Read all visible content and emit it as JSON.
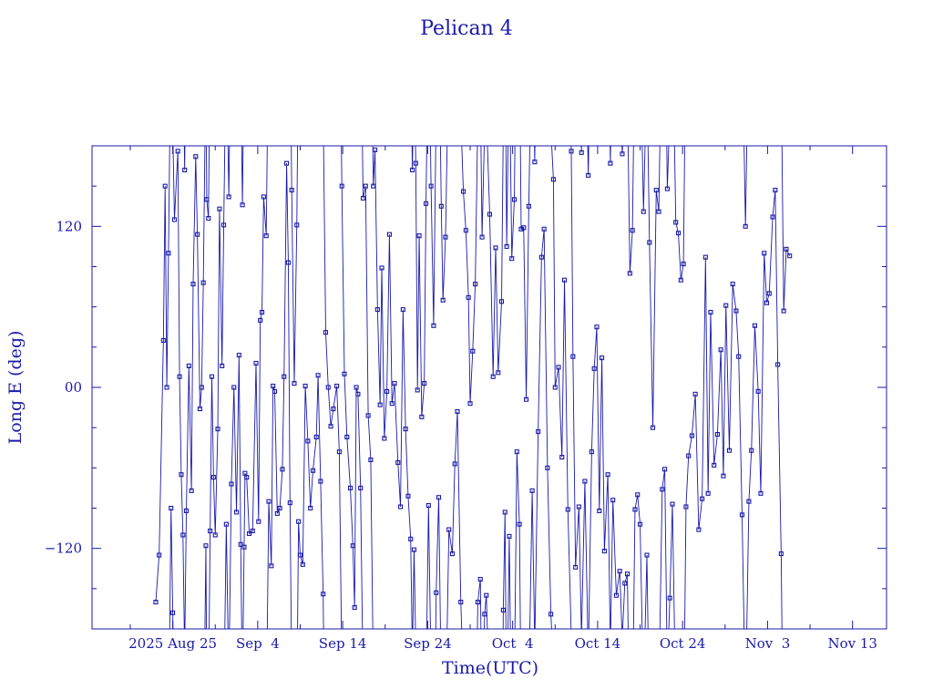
{
  "chart_data": {
    "type": "scatter",
    "title": "Pelican 4",
    "xlabel": "Time(UTC)",
    "ylabel": "Long E (deg)",
    "x_ticks": [
      "2025 Aug 25",
      "Sep  4",
      "Sep 14",
      "Sep 24",
      "Oct  4",
      "Oct 14",
      "Oct 24",
      "Nov  3",
      "Nov 13"
    ],
    "x_tick_days": [
      0,
      10,
      20,
      30,
      40,
      50,
      60,
      70,
      80
    ],
    "xlim_days": [
      -9.5,
      84
    ],
    "y_ticks": [
      "−120",
      "00",
      "120"
    ],
    "y_tick_values": [
      -120,
      0,
      120
    ],
    "ylim": [
      -180,
      180
    ],
    "grid": false,
    "series": [
      {
        "points": [
          [
            -2.0,
            -160
          ],
          [
            -1.6,
            -125
          ],
          [
            -1.1,
            35
          ],
          [
            -0.9,
            150
          ],
          [
            -0.7,
            0
          ],
          [
            -0.5,
            100
          ],
          [
            -0.2,
            -90
          ],
          [
            0.0,
            -168
          ],
          [
            0.2,
            125
          ],
          [
            0.6,
            176
          ],
          [
            0.8,
            8
          ],
          [
            1.0,
            -65
          ],
          [
            1.2,
            -110
          ],
          [
            1.4,
            162
          ],
          [
            1.6,
            -92
          ],
          [
            1.9,
            16
          ],
          [
            2.2,
            -77
          ],
          [
            2.4,
            77
          ],
          [
            2.7,
            172
          ],
          [
            2.9,
            114
          ],
          [
            3.2,
            -16
          ],
          [
            3.4,
            0
          ],
          [
            3.6,
            78
          ],
          [
            3.9,
            -118
          ],
          [
            4.0,
            140
          ],
          [
            4.2,
            126
          ],
          [
            4.4,
            -107
          ],
          [
            4.6,
            8
          ],
          [
            4.8,
            -67
          ],
          [
            5.0,
            -110
          ],
          [
            5.3,
            -31
          ],
          [
            5.5,
            133
          ],
          [
            5.8,
            16
          ],
          [
            6.0,
            121
          ],
          [
            6.3,
            -102
          ],
          [
            6.6,
            142
          ],
          [
            6.9,
            -72
          ],
          [
            7.2,
            0
          ],
          [
            7.5,
            -93
          ],
          [
            7.8,
            24
          ],
          [
            8.0,
            -117
          ],
          [
            8.2,
            136
          ],
          [
            8.4,
            -119
          ],
          [
            8.5,
            -64
          ],
          [
            8.7,
            -67
          ],
          [
            9.0,
            -109
          ],
          [
            9.4,
            -107
          ],
          [
            9.8,
            18
          ],
          [
            10.1,
            -100
          ],
          [
            10.3,
            50
          ],
          [
            10.5,
            56
          ],
          [
            10.7,
            142
          ],
          [
            11.0,
            113
          ],
          [
            11.3,
            -85
          ],
          [
            11.6,
            -133
          ],
          [
            11.8,
            1
          ],
          [
            12.0,
            -3
          ],
          [
            12.3,
            -94
          ],
          [
            12.6,
            -90
          ],
          [
            12.9,
            -61
          ],
          [
            13.1,
            8
          ],
          [
            13.4,
            167
          ],
          [
            13.6,
            93
          ],
          [
            13.8,
            -86
          ],
          [
            14.0,
            147
          ],
          [
            14.3,
            3
          ],
          [
            14.6,
            121
          ],
          [
            14.8,
            -100
          ],
          [
            15.0,
            -125
          ],
          [
            15.3,
            -132
          ],
          [
            15.6,
            1
          ],
          [
            15.9,
            -40
          ],
          [
            16.2,
            -90
          ],
          [
            16.5,
            -62
          ],
          [
            16.9,
            -37
          ],
          [
            17.1,
            9
          ],
          [
            17.4,
            -70
          ],
          [
            17.7,
            -154
          ],
          [
            18.0,
            41
          ],
          [
            18.3,
            0
          ],
          [
            18.6,
            -29
          ],
          [
            18.9,
            -16
          ],
          [
            19.3,
            1
          ],
          [
            19.6,
            -48
          ],
          [
            19.9,
            150
          ],
          [
            20.2,
            10
          ],
          [
            20.5,
            -37
          ],
          [
            20.9,
            -75
          ],
          [
            21.2,
            -118
          ],
          [
            21.4,
            -164
          ],
          [
            21.6,
            0
          ],
          [
            21.8,
            -5
          ],
          [
            22.1,
            -75
          ],
          [
            22.4,
            141
          ],
          [
            22.7,
            150
          ],
          [
            23.0,
            -21
          ],
          [
            23.3,
            -54
          ],
          [
            23.6,
            150
          ],
          [
            23.8,
            177
          ],
          [
            24.1,
            58
          ],
          [
            24.4,
            -13
          ],
          [
            24.6,
            89
          ],
          [
            24.9,
            -38
          ],
          [
            25.2,
            -3
          ],
          [
            25.5,
            114
          ],
          [
            25.8,
            -12
          ],
          [
            26.1,
            3
          ],
          [
            26.5,
            -56
          ],
          [
            26.8,
            -89
          ],
          [
            27.1,
            58
          ],
          [
            27.4,
            -31
          ],
          [
            27.7,
            -81
          ],
          [
            28.0,
            -113
          ],
          [
            28.2,
            162
          ],
          [
            28.4,
            -121
          ],
          [
            28.6,
            167
          ],
          [
            28.8,
            -2
          ],
          [
            29.0,
            113
          ],
          [
            29.3,
            -22
          ],
          [
            29.6,
            3
          ],
          [
            29.8,
            137
          ],
          [
            30.1,
            -88
          ],
          [
            30.4,
            150
          ],
          [
            30.7,
            46
          ],
          [
            31.0,
            -153
          ],
          [
            31.3,
            -82
          ],
          [
            31.6,
            135
          ],
          [
            31.8,
            65
          ],
          [
            32.1,
            112
          ],
          [
            32.5,
            -106
          ],
          [
            32.9,
            -124
          ],
          [
            33.2,
            -57
          ],
          [
            33.5,
            -18
          ],
          [
            33.9,
            -160
          ],
          [
            34.2,
            146
          ],
          [
            34.5,
            117
          ],
          [
            34.8,
            67
          ],
          [
            35.0,
            -12
          ],
          [
            35.3,
            27
          ],
          [
            35.6,
            77
          ],
          [
            35.9,
            -160
          ],
          [
            36.2,
            -143
          ],
          [
            36.4,
            112
          ],
          [
            36.7,
            -169
          ],
          [
            36.9,
            -155
          ],
          [
            37.3,
            129
          ],
          [
            37.7,
            8
          ],
          [
            38.0,
            104
          ],
          [
            38.3,
            11
          ],
          [
            38.7,
            64
          ],
          [
            38.9,
            -166
          ],
          [
            39.1,
            -93
          ],
          [
            39.3,
            105
          ],
          [
            39.6,
            -111
          ],
          [
            39.9,
            96
          ],
          [
            40.2,
            140
          ],
          [
            40.5,
            -48
          ],
          [
            40.8,
            -102
          ],
          [
            41.0,
            118
          ],
          [
            41.3,
            119
          ],
          [
            41.6,
            -9
          ],
          [
            41.9,
            135
          ],
          [
            42.3,
            -77
          ],
          [
            42.6,
            168
          ],
          [
            43.0,
            -33
          ],
          [
            43.4,
            97
          ],
          [
            43.7,
            118
          ],
          [
            44.1,
            -60
          ],
          [
            44.5,
            -169
          ],
          [
            44.8,
            155
          ],
          [
            45.0,
            0
          ],
          [
            45.4,
            15
          ],
          [
            45.8,
            -52
          ],
          [
            46.1,
            80
          ],
          [
            46.5,
            -91
          ],
          [
            46.9,
            176
          ],
          [
            47.1,
            23
          ],
          [
            47.4,
            -134
          ],
          [
            47.8,
            -89
          ],
          [
            48.1,
            175
          ],
          [
            48.5,
            -70
          ],
          [
            48.9,
            158
          ],
          [
            49.3,
            -48
          ],
          [
            49.6,
            14
          ],
          [
            49.9,
            45
          ],
          [
            50.2,
            -92
          ],
          [
            50.5,
            22
          ],
          [
            50.8,
            -122
          ],
          [
            51.2,
            -65
          ],
          [
            51.5,
            167
          ],
          [
            51.8,
            -84
          ],
          [
            52.2,
            -155
          ],
          [
            52.6,
            -137
          ],
          [
            52.9,
            174
          ],
          [
            53.2,
            -146
          ],
          [
            53.5,
            -139
          ],
          [
            53.8,
            85
          ],
          [
            54.1,
            117
          ],
          [
            54.4,
            -91
          ],
          [
            54.7,
            -80
          ],
          [
            55.0,
            -102
          ],
          [
            55.4,
            131
          ],
          [
            55.8,
            -125
          ],
          [
            56.1,
            108
          ],
          [
            56.5,
            -30
          ],
          [
            56.9,
            147
          ],
          [
            57.2,
            131
          ],
          [
            57.6,
            -76
          ],
          [
            57.9,
            -61
          ],
          [
            58.2,
            148
          ],
          [
            58.5,
            -157
          ],
          [
            58.8,
            -87
          ],
          [
            59.2,
            123
          ],
          [
            59.5,
            115
          ],
          [
            59.8,
            80
          ],
          [
            60.1,
            92
          ],
          [
            60.4,
            -89
          ],
          [
            60.7,
            -51
          ],
          [
            61.1,
            -36
          ],
          [
            61.5,
            -5
          ],
          [
            61.9,
            -106
          ],
          [
            62.3,
            -83
          ],
          [
            62.7,
            97
          ],
          [
            63.0,
            -79
          ],
          [
            63.3,
            56
          ],
          [
            63.7,
            -58
          ],
          [
            64.1,
            -35
          ],
          [
            64.5,
            28
          ],
          [
            64.8,
            -66
          ],
          [
            65.1,
            61
          ],
          [
            65.5,
            -47
          ],
          [
            65.9,
            77
          ],
          [
            66.3,
            57
          ],
          [
            66.6,
            23
          ],
          [
            67.0,
            -95
          ],
          [
            67.4,
            120
          ],
          [
            67.8,
            -85
          ],
          [
            68.1,
            -47
          ],
          [
            68.5,
            46
          ],
          [
            68.9,
            -3
          ],
          [
            69.2,
            -79
          ],
          [
            69.6,
            100
          ],
          [
            69.9,
            63
          ],
          [
            70.2,
            70
          ],
          [
            70.6,
            127
          ],
          [
            70.9,
            147
          ],
          [
            71.2,
            17
          ],
          [
            71.6,
            -124
          ],
          [
            71.9,
            57
          ],
          [
            72.2,
            103
          ],
          [
            72.6,
            98
          ]
        ]
      }
    ]
  }
}
